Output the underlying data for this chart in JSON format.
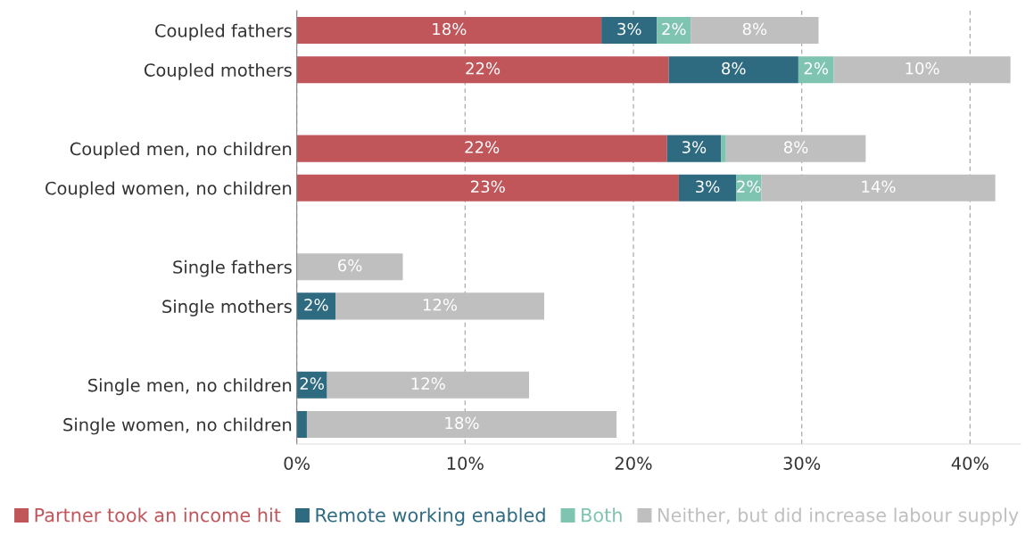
{
  "chart_data": {
    "type": "bar",
    "orientation": "horizontal",
    "stacked": true,
    "categories": [
      "Coupled fathers",
      "Coupled mothers",
      null,
      "Coupled men, no children",
      "Coupled women, no children",
      null,
      "Single fathers",
      "Single mothers",
      null,
      "Single men, no children",
      "Single women, no children"
    ],
    "series": [
      {
        "name": "Partner took an income hit",
        "color": "#c0555a",
        "values": [
          18.1,
          22.1,
          null,
          22.0,
          22.7,
          null,
          null,
          null,
          null,
          null,
          null
        ],
        "value_labels": [
          "18%",
          "22%",
          null,
          "22%",
          "23%",
          null,
          null,
          null,
          null,
          null,
          null
        ]
      },
      {
        "name": "Remote working enabled",
        "color": "#2e6a80",
        "values": [
          3.3,
          7.7,
          null,
          3.2,
          3.4,
          null,
          null,
          2.3,
          null,
          1.8,
          0.6
        ],
        "value_labels": [
          "3%",
          "8%",
          null,
          "3%",
          "3%",
          null,
          null,
          "2%",
          null,
          "2%",
          null
        ]
      },
      {
        "name": "Both",
        "color": "#7fc4b0",
        "values": [
          2.0,
          2.1,
          null,
          0.3,
          1.5,
          null,
          null,
          null,
          null,
          null,
          null
        ],
        "value_labels": [
          "2%",
          "2%",
          null,
          null,
          "2%",
          null,
          null,
          null,
          null,
          null,
          null
        ]
      },
      {
        "name": "Neither, but did increase labour supply",
        "color": "#bfbfbf",
        "values": [
          7.6,
          10.5,
          null,
          8.3,
          13.9,
          null,
          6.3,
          12.4,
          null,
          12.0,
          18.4
        ],
        "value_labels": [
          "8%",
          "10%",
          null,
          "8%",
          "14%",
          null,
          "6%",
          "12%",
          null,
          "12%",
          "18%"
        ]
      }
    ],
    "xlim": [
      0,
      43
    ],
    "xticks": [
      {
        "value": 0,
        "label": "0%"
      },
      {
        "value": 10,
        "label": "10%"
      },
      {
        "value": 20,
        "label": "20%"
      },
      {
        "value": 30,
        "label": "30%"
      },
      {
        "value": 40,
        "label": "40%"
      }
    ],
    "grid": "x",
    "legend": "bottom"
  }
}
